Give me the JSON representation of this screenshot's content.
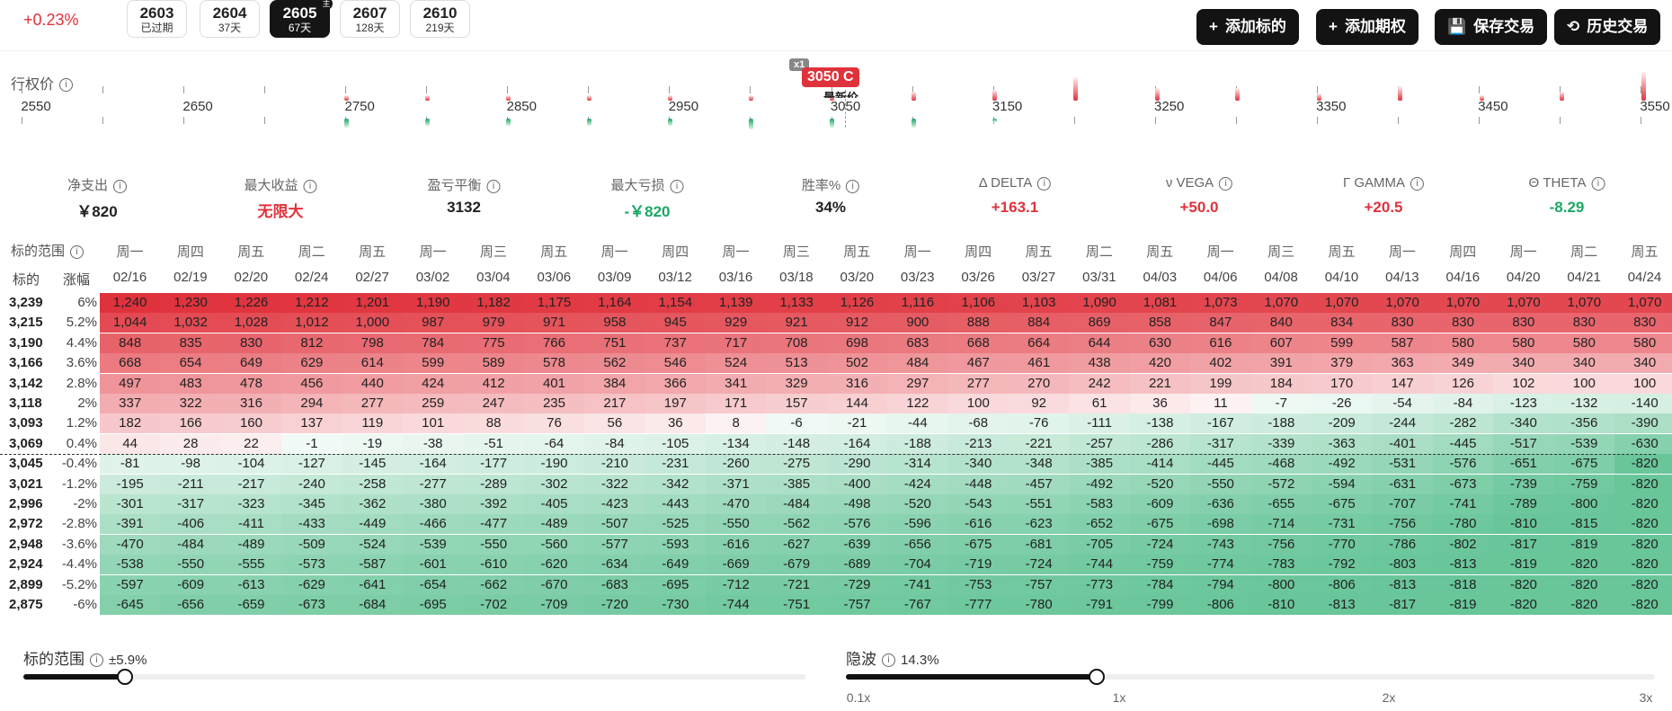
{
  "header": {
    "change_pct": "+0.23%",
    "expiries": [
      {
        "code": "2603",
        "sub": "已过期",
        "active": false
      },
      {
        "code": "2604",
        "sub": "37天",
        "active": false
      },
      {
        "code": "2605",
        "sub": "67天",
        "active": true,
        "badge": "主"
      },
      {
        "code": "2607",
        "sub": "128天",
        "active": false
      },
      {
        "code": "2610",
        "sub": "219天",
        "active": false
      }
    ],
    "buttons": [
      {
        "icon": "+",
        "label": "添加标的"
      },
      {
        "icon": "+",
        "label": "添加期权"
      },
      {
        "icon": "💾",
        "label": "保存交易"
      },
      {
        "icon": "⟲",
        "label": "历史交易"
      }
    ]
  },
  "strike": {
    "title": "行权价",
    "ticks": [
      "2550",
      "2650",
      "2750",
      "2850",
      "2950",
      "3050",
      "3150",
      "3250",
      "3350",
      "3450",
      "3550"
    ],
    "position_badge": "x1",
    "position_label": "3050 C",
    "latest_label": "最新价"
  },
  "summary": [
    {
      "label": "净支出",
      "value": "￥820",
      "color": "#222"
    },
    {
      "label": "最大收益",
      "value": "无限大",
      "color": "#e0323c"
    },
    {
      "label": "盈亏平衡",
      "value": "3132",
      "color": "#222"
    },
    {
      "label": "最大亏损",
      "value": "-￥820",
      "color": "#1aa865"
    },
    {
      "label": "胜率%",
      "value": "34%",
      "color": "#222"
    },
    {
      "label": "Δ DELTA",
      "value": "+163.1",
      "color": "#e0323c",
      "sym_color": "#e0323c"
    },
    {
      "label": "ν VEGA",
      "value": "+50.0",
      "color": "#e0323c",
      "sym_color": "#1aa865"
    },
    {
      "label": "Γ GAMMA",
      "value": "+20.5",
      "color": "#e0323c",
      "sym_color": "#e0323c"
    },
    {
      "label": "Θ THETA",
      "value": "-8.29",
      "color": "#1aa865",
      "sym_color": "#2f6fd8"
    }
  ],
  "grid": {
    "range_label": "标的范围",
    "col_underlying": "标的",
    "col_change": "涨幅",
    "weekdays": [
      "周一",
      "周四",
      "周五",
      "周二",
      "周五",
      "周一",
      "周三",
      "周五",
      "周一",
      "周四",
      "周一",
      "周三",
      "周五",
      "周一",
      "周四",
      "周五",
      "周二",
      "周五",
      "周一",
      "周三",
      "周五",
      "周一",
      "周四",
      "周一",
      "周二",
      "周五"
    ],
    "dates": [
      "02/16",
      "02/19",
      "02/20",
      "02/24",
      "02/27",
      "03/02",
      "03/04",
      "03/06",
      "03/09",
      "03/12",
      "03/16",
      "03/18",
      "03/20",
      "03/23",
      "03/26",
      "03/27",
      "03/31",
      "04/03",
      "04/06",
      "04/08",
      "04/10",
      "04/13",
      "04/16",
      "04/20",
      "04/21",
      "04/24"
    ],
    "rows": [
      {
        "price": "3,239",
        "pct": "6%",
        "values": [
          "1,240",
          "1,230",
          "1,226",
          "1,212",
          "1,201",
          "1,190",
          "1,182",
          "1,175",
          "1,164",
          "1,154",
          "1,139",
          "1,133",
          "1,126",
          "1,116",
          "1,106",
          "1,103",
          "1,090",
          "1,081",
          "1,073",
          "1,070",
          "1,070",
          "1,070",
          "1,070",
          "1,070",
          "1,070",
          "1,070"
        ]
      },
      {
        "price": "3,215",
        "pct": "5.2%",
        "values": [
          "1,044",
          "1,032",
          "1,028",
          "1,012",
          "1,000",
          "987",
          "979",
          "971",
          "958",
          "945",
          "929",
          "921",
          "912",
          "900",
          "888",
          "884",
          "869",
          "858",
          "847",
          "840",
          "834",
          "830",
          "830",
          "830",
          "830",
          "830"
        ]
      },
      {
        "price": "3,190",
        "pct": "4.4%",
        "values": [
          "848",
          "835",
          "830",
          "812",
          "798",
          "784",
          "775",
          "766",
          "751",
          "737",
          "717",
          "708",
          "698",
          "683",
          "668",
          "664",
          "644",
          "630",
          "616",
          "607",
          "599",
          "587",
          "580",
          "580",
          "580",
          "580"
        ]
      },
      {
        "price": "3,166",
        "pct": "3.6%",
        "values": [
          "668",
          "654",
          "649",
          "629",
          "614",
          "599",
          "589",
          "578",
          "562",
          "546",
          "524",
          "513",
          "502",
          "484",
          "467",
          "461",
          "438",
          "420",
          "402",
          "391",
          "379",
          "363",
          "349",
          "340",
          "340",
          "340"
        ]
      },
      {
        "price": "3,142",
        "pct": "2.8%",
        "values": [
          "497",
          "483",
          "478",
          "456",
          "440",
          "424",
          "412",
          "401",
          "384",
          "366",
          "341",
          "329",
          "316",
          "297",
          "277",
          "270",
          "242",
          "221",
          "199",
          "184",
          "170",
          "147",
          "126",
          "102",
          "100",
          "100"
        ]
      },
      {
        "price": "3,118",
        "pct": "2%",
        "values": [
          "337",
          "322",
          "316",
          "294",
          "277",
          "259",
          "247",
          "235",
          "217",
          "197",
          "171",
          "157",
          "144",
          "122",
          "100",
          "92",
          "61",
          "36",
          "11",
          "-7",
          "-26",
          "-54",
          "-84",
          "-123",
          "-132",
          "-140"
        ]
      },
      {
        "price": "3,093",
        "pct": "1.2%",
        "values": [
          "182",
          "166",
          "160",
          "137",
          "119",
          "101",
          "88",
          "76",
          "56",
          "36",
          "8",
          "-6",
          "-21",
          "-44",
          "-68",
          "-76",
          "-111",
          "-138",
          "-167",
          "-188",
          "-209",
          "-244",
          "-282",
          "-340",
          "-356",
          "-390"
        ]
      },
      {
        "price": "3,069",
        "pct": "0.4%",
        "values": [
          "44",
          "28",
          "22",
          "-1",
          "-19",
          "-38",
          "-51",
          "-64",
          "-84",
          "-105",
          "-134",
          "-148",
          "-164",
          "-188",
          "-213",
          "-221",
          "-257",
          "-286",
          "-317",
          "-339",
          "-363",
          "-401",
          "-445",
          "-517",
          "-539",
          "-630"
        ]
      },
      {
        "price": "3,045",
        "pct": "-0.4%",
        "values": [
          "-81",
          "-98",
          "-104",
          "-127",
          "-145",
          "-164",
          "-177",
          "-190",
          "-210",
          "-231",
          "-260",
          "-275",
          "-290",
          "-314",
          "-340",
          "-348",
          "-385",
          "-414",
          "-445",
          "-468",
          "-492",
          "-531",
          "-576",
          "-651",
          "-675",
          "-820"
        ]
      },
      {
        "price": "3,021",
        "pct": "-1.2%",
        "values": [
          "-195",
          "-211",
          "-217",
          "-240",
          "-258",
          "-277",
          "-289",
          "-302",
          "-322",
          "-342",
          "-371",
          "-385",
          "-400",
          "-424",
          "-448",
          "-457",
          "-492",
          "-520",
          "-550",
          "-572",
          "-594",
          "-631",
          "-673",
          "-739",
          "-759",
          "-820"
        ]
      },
      {
        "price": "2,996",
        "pct": "-2%",
        "values": [
          "-301",
          "-317",
          "-323",
          "-345",
          "-362",
          "-380",
          "-392",
          "-405",
          "-423",
          "-443",
          "-470",
          "-484",
          "-498",
          "-520",
          "-543",
          "-551",
          "-583",
          "-609",
          "-636",
          "-655",
          "-675",
          "-707",
          "-741",
          "-789",
          "-800",
          "-820"
        ]
      },
      {
        "price": "2,972",
        "pct": "-2.8%",
        "values": [
          "-391",
          "-406",
          "-411",
          "-433",
          "-449",
          "-466",
          "-477",
          "-489",
          "-507",
          "-525",
          "-550",
          "-562",
          "-576",
          "-596",
          "-616",
          "-623",
          "-652",
          "-675",
          "-698",
          "-714",
          "-731",
          "-756",
          "-780",
          "-810",
          "-815",
          "-820"
        ]
      },
      {
        "price": "2,948",
        "pct": "-3.6%",
        "values": [
          "-470",
          "-484",
          "-489",
          "-509",
          "-524",
          "-539",
          "-550",
          "-560",
          "-577",
          "-593",
          "-616",
          "-627",
          "-639",
          "-656",
          "-675",
          "-681",
          "-705",
          "-724",
          "-743",
          "-756",
          "-770",
          "-786",
          "-802",
          "-817",
          "-819",
          "-820"
        ]
      },
      {
        "price": "2,924",
        "pct": "-4.4%",
        "values": [
          "-538",
          "-550",
          "-555",
          "-573",
          "-587",
          "-601",
          "-610",
          "-620",
          "-634",
          "-649",
          "-669",
          "-679",
          "-689",
          "-704",
          "-719",
          "-724",
          "-744",
          "-759",
          "-774",
          "-783",
          "-792",
          "-803",
          "-813",
          "-819",
          "-820",
          "-820"
        ]
      },
      {
        "price": "2,899",
        "pct": "-5.2%",
        "values": [
          "-597",
          "-609",
          "-613",
          "-629",
          "-641",
          "-654",
          "-662",
          "-670",
          "-683",
          "-695",
          "-712",
          "-721",
          "-729",
          "-741",
          "-753",
          "-757",
          "-773",
          "-784",
          "-794",
          "-800",
          "-806",
          "-813",
          "-818",
          "-820",
          "-820",
          "-820"
        ]
      },
      {
        "price": "2,875",
        "pct": "-6%",
        "values": [
          "-645",
          "-656",
          "-659",
          "-673",
          "-684",
          "-695",
          "-702",
          "-709",
          "-720",
          "-730",
          "-744",
          "-751",
          "-757",
          "-767",
          "-777",
          "-780",
          "-791",
          "-799",
          "-806",
          "-810",
          "-813",
          "-817",
          "-819",
          "-820",
          "-820",
          "-820"
        ]
      }
    ]
  },
  "sliders": {
    "range": {
      "label": "标的范围",
      "value": "±5.9%",
      "level": 0.13
    },
    "iv": {
      "label": "隐波",
      "value": "14.3%",
      "level": 0.31,
      "scale": [
        "0.1x",
        "1x",
        "2x",
        "3x"
      ]
    }
  },
  "colors": {
    "red": "#e0323c",
    "green": "#1aa865",
    "dark": "#131313"
  }
}
